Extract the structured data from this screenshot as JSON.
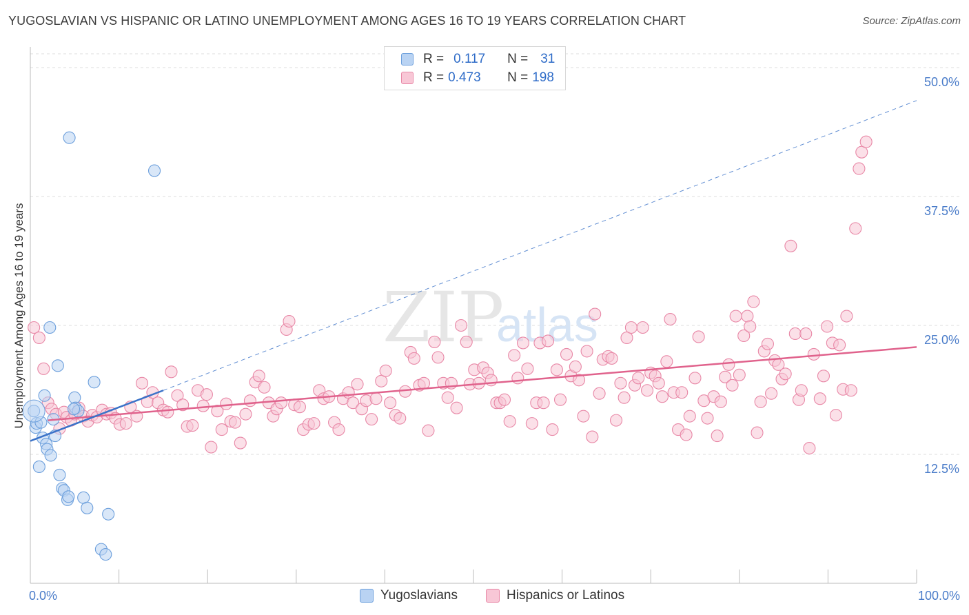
{
  "title": "YUGOSLAVIAN VS HISPANIC OR LATINO UNEMPLOYMENT AMONG AGES 16 TO 19 YEARS CORRELATION CHART",
  "source": "Source: ZipAtlas.com",
  "watermark": {
    "zip": "ZIP",
    "atlas": "atlas"
  },
  "legend": {
    "r_label": "R =",
    "n_label": "N =",
    "series1": {
      "r": "0.117",
      "n": "31"
    },
    "series2": {
      "r": "0.473",
      "n": "198"
    }
  },
  "colors": {
    "blue_fill": "#b9d3f3",
    "blue_stroke": "#6c9fdc",
    "blue_line": "#3a72c8",
    "pink_fill": "#f8c7d6",
    "pink_stroke": "#e887a6",
    "pink_line": "#e0628c",
    "axis_text": "#4a7cc9",
    "grid": "#dddddd"
  },
  "chart_data": {
    "type": "scatter",
    "title": "YUGOSLAVIAN VS HISPANIC OR LATINO UNEMPLOYMENT AMONG AGES 16 TO 19 YEARS CORRELATION CHART",
    "xlabel": "",
    "ylabel": "Unemployment Among Ages 16 to 19 years",
    "xlim": [
      0,
      100
    ],
    "ylim": [
      0,
      50
    ],
    "y_ticks": [
      12.5,
      25.0,
      37.5,
      50.0
    ],
    "y_tick_labels": [
      "12.5%",
      "25.0%",
      "37.5%",
      "50.0%"
    ],
    "x_tick_labels": [
      "0.0%",
      "100.0%"
    ],
    "grid": true,
    "legend_position": "top-center",
    "series": [
      {
        "name": "Yugoslavians",
        "r": 0.117,
        "n": 31,
        "trend": {
          "solid": [
            [
              0,
              13.8
            ],
            [
              15,
              18.7
            ]
          ],
          "dashed": [
            [
              15,
              18.7
            ],
            [
              100,
              46.8
            ]
          ]
        },
        "points": [
          [
            0.4,
            16.7
          ],
          [
            0.6,
            15.1
          ],
          [
            0.7,
            15.5
          ],
          [
            1.2,
            15.6
          ],
          [
            1.4,
            14.1
          ],
          [
            1.6,
            18.2
          ],
          [
            1.8,
            13.5
          ],
          [
            1.9,
            13.0
          ],
          [
            2.2,
            24.8
          ],
          [
            2.3,
            12.4
          ],
          [
            2.6,
            15.9
          ],
          [
            2.8,
            14.3
          ],
          [
            3.1,
            21.1
          ],
          [
            3.3,
            10.5
          ],
          [
            3.6,
            9.2
          ],
          [
            3.8,
            9.0
          ],
          [
            4.2,
            8.1
          ],
          [
            4.3,
            8.4
          ],
          [
            4.4,
            43.2
          ],
          [
            5.0,
            18.0
          ],
          [
            5.1,
            17.0
          ],
          [
            5.4,
            16.7
          ],
          [
            6.0,
            8.3
          ],
          [
            6.4,
            7.3
          ],
          [
            7.2,
            19.5
          ],
          [
            8.0,
            3.3
          ],
          [
            8.5,
            2.8
          ],
          [
            8.8,
            6.7
          ],
          [
            14.0,
            40.0
          ],
          [
            1.0,
            11.3
          ],
          [
            4.9,
            16.9
          ]
        ]
      },
      {
        "name": "Hispanics or Latinos",
        "r": 0.473,
        "n": 198,
        "trend": {
          "solid": [
            [
              2,
              15.8
            ],
            [
              100,
              22.9
            ]
          ]
        },
        "points": [
          [
            0.4,
            24.8
          ],
          [
            1.0,
            23.8
          ],
          [
            1.5,
            20.8
          ],
          [
            2.0,
            17.5
          ],
          [
            2.4,
            16.9
          ],
          [
            2.9,
            16.4
          ],
          [
            3.3,
            15.0
          ],
          [
            3.8,
            16.6
          ],
          [
            4.1,
            16.1
          ],
          [
            4.6,
            15.8
          ],
          [
            5.0,
            16.4
          ],
          [
            5.5,
            17.0
          ],
          [
            6.0,
            16.2
          ],
          [
            6.5,
            15.7
          ],
          [
            7.0,
            16.3
          ],
          [
            7.5,
            16.1
          ],
          [
            8.1,
            16.8
          ],
          [
            8.6,
            16.4
          ],
          [
            9.1,
            16.5
          ],
          [
            9.6,
            16.0
          ],
          [
            10.1,
            15.4
          ],
          [
            10.8,
            15.5
          ],
          [
            11.3,
            17.1
          ],
          [
            12.0,
            16.2
          ],
          [
            12.6,
            19.4
          ],
          [
            13.2,
            17.6
          ],
          [
            13.8,
            18.5
          ],
          [
            14.4,
            17.5
          ],
          [
            15.0,
            16.8
          ],
          [
            15.5,
            16.6
          ],
          [
            15.9,
            20.5
          ],
          [
            16.6,
            18.2
          ],
          [
            17.2,
            17.3
          ],
          [
            17.7,
            15.2
          ],
          [
            18.3,
            15.3
          ],
          [
            18.9,
            18.7
          ],
          [
            19.5,
            17.2
          ],
          [
            19.9,
            18.3
          ],
          [
            20.4,
            13.2
          ],
          [
            21.1,
            16.7
          ],
          [
            21.6,
            14.9
          ],
          [
            22.1,
            17.4
          ],
          [
            22.6,
            15.7
          ],
          [
            23.1,
            15.6
          ],
          [
            23.7,
            13.6
          ],
          [
            24.3,
            16.4
          ],
          [
            24.8,
            17.7
          ],
          [
            25.4,
            19.5
          ],
          [
            25.8,
            20.1
          ],
          [
            26.4,
            19.0
          ],
          [
            26.9,
            17.5
          ],
          [
            27.4,
            16.2
          ],
          [
            27.8,
            16.9
          ],
          [
            28.3,
            17.5
          ],
          [
            28.9,
            24.6
          ],
          [
            29.2,
            25.4
          ],
          [
            29.8,
            17.3
          ],
          [
            30.4,
            17.1
          ],
          [
            30.8,
            14.9
          ],
          [
            31.4,
            15.4
          ],
          [
            32.0,
            15.5
          ],
          [
            32.6,
            18.7
          ],
          [
            33.1,
            17.9
          ],
          [
            33.7,
            18.1
          ],
          [
            34.3,
            15.6
          ],
          [
            34.8,
            14.9
          ],
          [
            35.3,
            17.9
          ],
          [
            35.9,
            18.5
          ],
          [
            36.4,
            17.5
          ],
          [
            36.9,
            19.3
          ],
          [
            37.4,
            16.9
          ],
          [
            37.9,
            17.7
          ],
          [
            38.5,
            15.9
          ],
          [
            39.0,
            17.9
          ],
          [
            39.6,
            19.6
          ],
          [
            40.1,
            20.6
          ],
          [
            40.6,
            17.5
          ],
          [
            41.2,
            16.3
          ],
          [
            41.7,
            16.0
          ],
          [
            42.3,
            18.6
          ],
          [
            42.9,
            22.4
          ],
          [
            43.3,
            21.8
          ],
          [
            43.9,
            19.2
          ],
          [
            44.4,
            19.4
          ],
          [
            44.9,
            14.8
          ],
          [
            45.6,
            23.4
          ],
          [
            46.0,
            21.9
          ],
          [
            46.6,
            19.4
          ],
          [
            47.1,
            18.0
          ],
          [
            47.5,
            19.4
          ],
          [
            48.1,
            17.0
          ],
          [
            48.6,
            25.0
          ],
          [
            49.2,
            23.4
          ],
          [
            49.6,
            19.3
          ],
          [
            50.1,
            20.7
          ],
          [
            50.6,
            19.4
          ],
          [
            51.1,
            20.9
          ],
          [
            51.6,
            20.4
          ],
          [
            52.0,
            19.7
          ],
          [
            52.6,
            17.5
          ],
          [
            53.0,
            17.5
          ],
          [
            53.5,
            17.8
          ],
          [
            54.1,
            15.7
          ],
          [
            54.6,
            22.1
          ],
          [
            55.0,
            19.9
          ],
          [
            55.6,
            23.3
          ],
          [
            56.1,
            20.8
          ],
          [
            56.6,
            15.5
          ],
          [
            57.1,
            17.5
          ],
          [
            57.5,
            23.3
          ],
          [
            57.9,
            17.5
          ],
          [
            58.4,
            23.5
          ],
          [
            58.9,
            14.9
          ],
          [
            59.4,
            20.7
          ],
          [
            59.8,
            17.8
          ],
          [
            60.5,
            22.2
          ],
          [
            61.0,
            20.1
          ],
          [
            61.5,
            21.0
          ],
          [
            61.9,
            19.7
          ],
          [
            62.4,
            16.2
          ],
          [
            62.8,
            22.5
          ],
          [
            63.4,
            14.2
          ],
          [
            63.7,
            26.1
          ],
          [
            64.2,
            18.4
          ],
          [
            64.6,
            21.7
          ],
          [
            65.2,
            22.0
          ],
          [
            65.6,
            21.8
          ],
          [
            66.1,
            15.8
          ],
          [
            66.6,
            19.4
          ],
          [
            67.0,
            18.0
          ],
          [
            67.3,
            23.8
          ],
          [
            67.8,
            24.8
          ],
          [
            68.2,
            19.2
          ],
          [
            68.6,
            19.9
          ],
          [
            69.1,
            24.8
          ],
          [
            69.6,
            18.7
          ],
          [
            70.0,
            20.4
          ],
          [
            70.5,
            20.1
          ],
          [
            70.9,
            19.4
          ],
          [
            71.3,
            18.1
          ],
          [
            71.8,
            21.5
          ],
          [
            72.2,
            25.6
          ],
          [
            72.6,
            18.5
          ],
          [
            73.1,
            14.9
          ],
          [
            73.5,
            18.5
          ],
          [
            74.0,
            14.4
          ],
          [
            74.4,
            16.2
          ],
          [
            75.0,
            19.9
          ],
          [
            75.4,
            23.9
          ],
          [
            76.0,
            17.7
          ],
          [
            76.4,
            16.0
          ],
          [
            77.1,
            18.1
          ],
          [
            77.5,
            14.3
          ],
          [
            77.9,
            17.6
          ],
          [
            78.4,
            20.0
          ],
          [
            78.8,
            21.2
          ],
          [
            79.2,
            19.2
          ],
          [
            79.6,
            25.9
          ],
          [
            80.0,
            20.2
          ],
          [
            80.5,
            24.0
          ],
          [
            80.9,
            25.9
          ],
          [
            81.2,
            24.9
          ],
          [
            81.6,
            27.3
          ],
          [
            82.0,
            14.6
          ],
          [
            82.4,
            17.6
          ],
          [
            82.8,
            22.5
          ],
          [
            83.2,
            23.2
          ],
          [
            83.6,
            18.4
          ],
          [
            84.0,
            21.6
          ],
          [
            84.4,
            21.2
          ],
          [
            84.8,
            19.8
          ],
          [
            85.2,
            20.3
          ],
          [
            85.8,
            32.7
          ],
          [
            86.3,
            24.2
          ],
          [
            86.7,
            17.8
          ],
          [
            87.0,
            18.7
          ],
          [
            87.5,
            24.2
          ],
          [
            87.9,
            13.1
          ],
          [
            88.4,
            22.2
          ],
          [
            89.1,
            17.9
          ],
          [
            89.5,
            20.1
          ],
          [
            89.9,
            24.9
          ],
          [
            90.5,
            23.3
          ],
          [
            90.9,
            16.3
          ],
          [
            91.3,
            23.1
          ],
          [
            91.7,
            18.8
          ],
          [
            92.1,
            25.9
          ],
          [
            92.6,
            18.7
          ],
          [
            93.1,
            34.4
          ],
          [
            93.5,
            40.2
          ],
          [
            93.8,
            41.8
          ],
          [
            94.3,
            42.8
          ]
        ]
      }
    ]
  },
  "bottom_legend": {
    "series1": "Yugoslavians",
    "series2": "Hispanics or Latinos"
  }
}
